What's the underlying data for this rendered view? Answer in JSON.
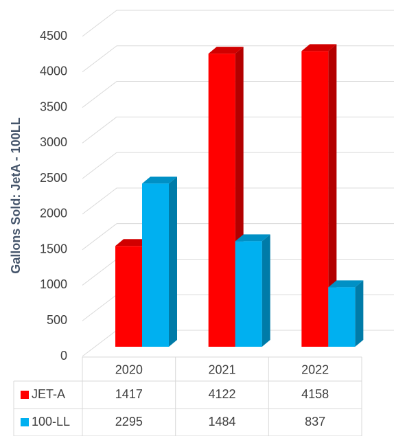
{
  "chart_data": {
    "type": "bar3d",
    "y_axis_label": "Gallons Sold: JetA - 100LL",
    "categories": [
      "2020",
      "2021",
      "2022"
    ],
    "series": [
      {
        "name": "JET-A",
        "color": "#ff0000",
        "values": [
          1417,
          4122,
          4158
        ]
      },
      {
        "name": "100-LL",
        "color": "#00b0f0",
        "values": [
          2295,
          1484,
          837
        ]
      }
    ],
    "ylim": [
      0,
      4500
    ],
    "yticks": [
      0,
      500,
      1000,
      1500,
      2000,
      2500,
      3000,
      3500,
      4000,
      4500
    ],
    "grid": true
  }
}
